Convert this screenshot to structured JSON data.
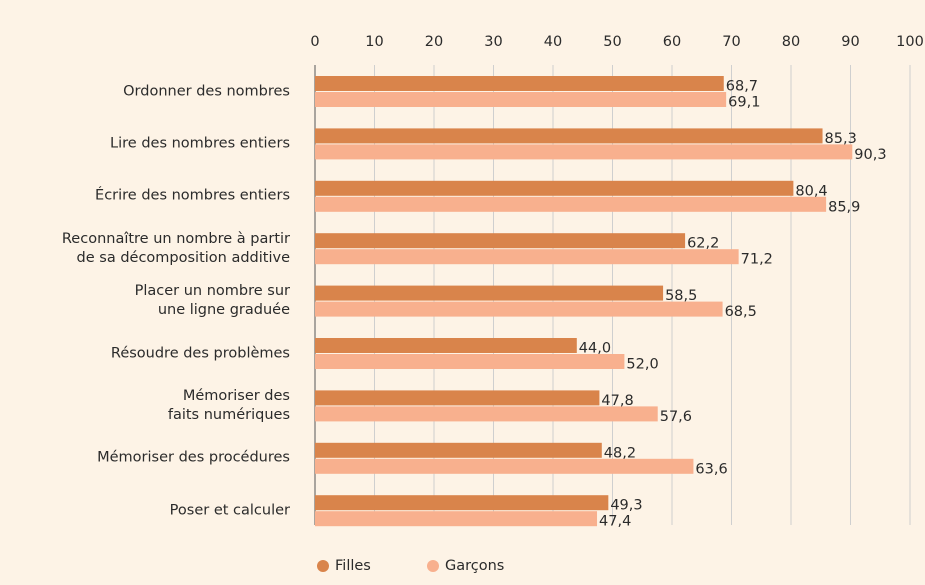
{
  "chart_data": {
    "type": "bar",
    "orientation": "horizontal",
    "categories": [
      "Ordonner des nombres",
      "Lire des nombres entiers",
      "Écrire des nombres entiers",
      "Reconnaître un nombre à partir\nde sa décomposition additive",
      "Placer un nombre sur\nune ligne graduée",
      "Résoudre des problèmes",
      "Mémoriser des\nfaits numériques",
      "Mémoriser des procédures",
      "Poser et calculer"
    ],
    "series": [
      {
        "name": "Filles",
        "color": "#d9844b",
        "values": [
          68.7,
          85.3,
          80.4,
          62.2,
          58.5,
          44.0,
          47.8,
          48.2,
          49.3
        ],
        "value_labels": [
          "68,7",
          "85,3",
          "80,4",
          "62,2",
          "58,5",
          "44,0",
          "47,8",
          "48,2",
          "49,3"
        ]
      },
      {
        "name": "Garçons",
        "color": "#f8b08e",
        "values": [
          69.1,
          90.3,
          85.9,
          71.2,
          68.5,
          52.0,
          57.6,
          63.6,
          47.4
        ],
        "value_labels": [
          "69,1",
          "90,3",
          "85,9",
          "71,2",
          "68,5",
          "52,0",
          "57,6",
          "63,6",
          "47,4"
        ]
      }
    ],
    "xlim": [
      0,
      100
    ],
    "xticks": [
      0,
      10,
      20,
      30,
      40,
      50,
      60,
      70,
      80,
      90,
      100
    ],
    "grid": true,
    "legend": "bottom"
  }
}
